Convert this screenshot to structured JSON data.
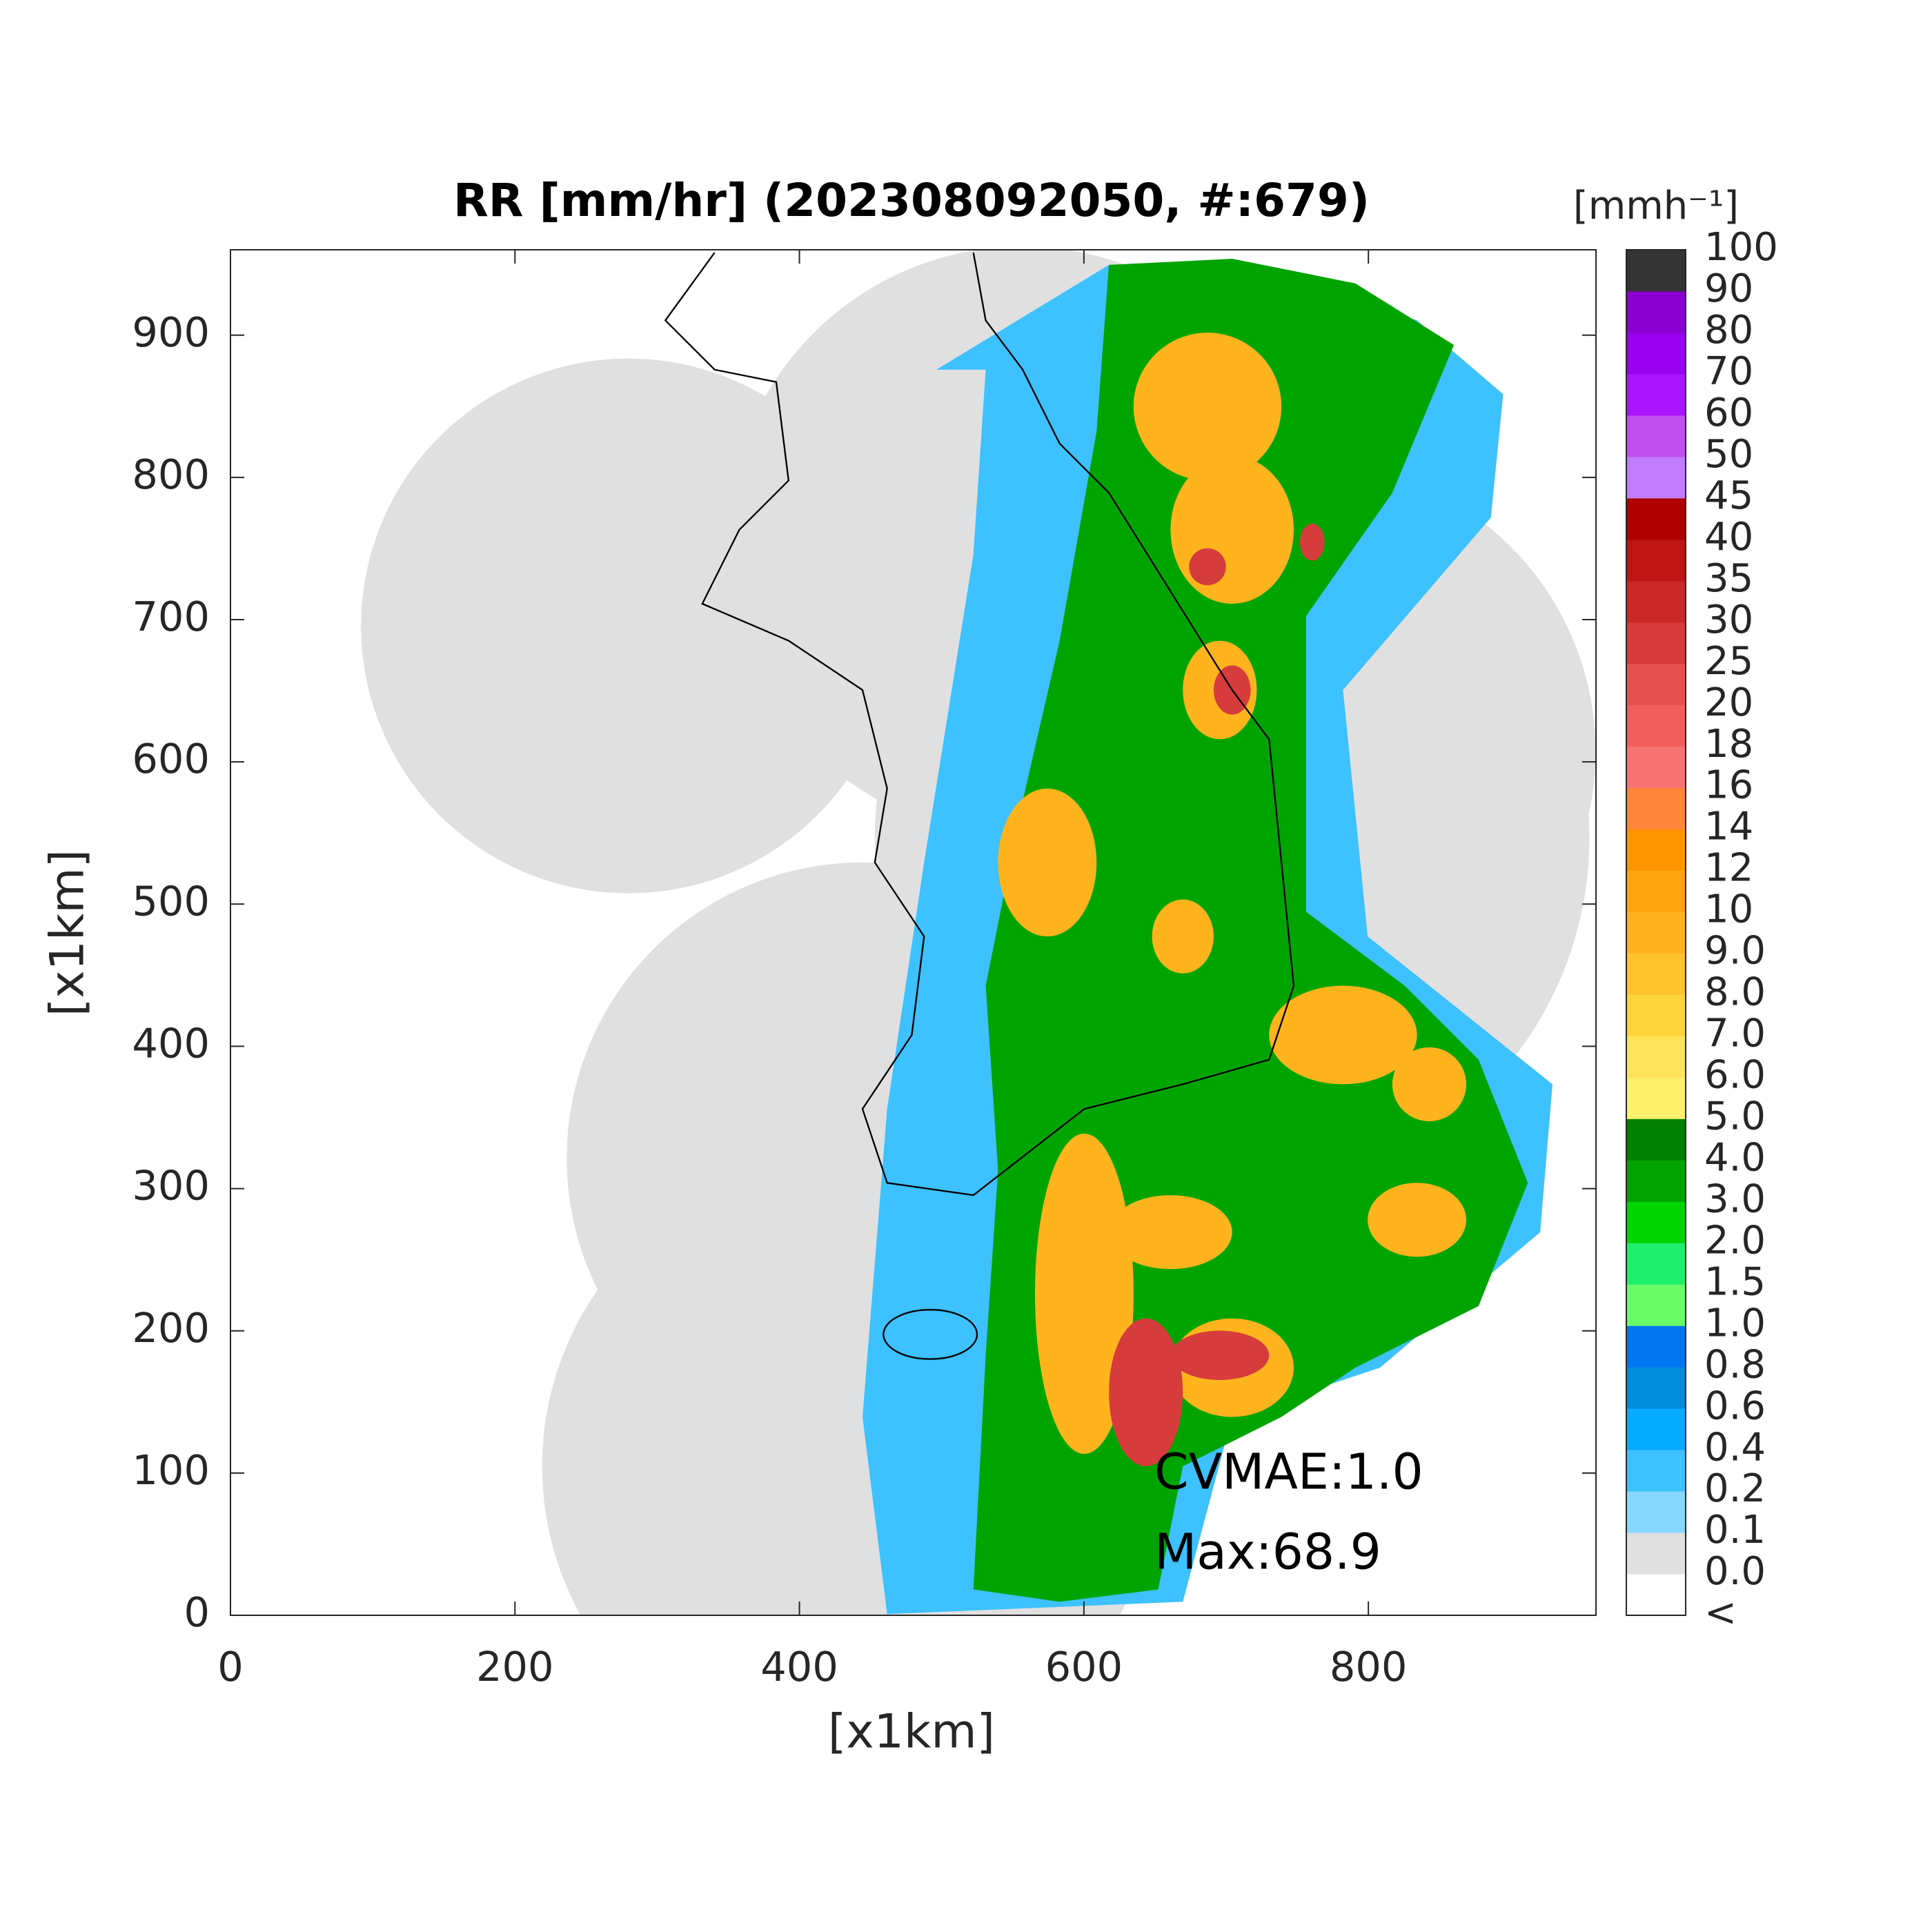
{
  "chart_data": {
    "type": "heatmap",
    "title": "RR [mm/hr] (202308092050, #:679)",
    "x_label": "[x1km]",
    "y_label": "[x1km]",
    "xlim": [
      0,
      960
    ],
    "ylim": [
      0,
      960
    ],
    "xticks": [
      0,
      200,
      400,
      600,
      800
    ],
    "yticks": [
      0,
      100,
      200,
      300,
      400,
      500,
      600,
      700,
      800,
      900
    ],
    "annotations": [
      "CVMAE:1.0",
      "Max:68.9"
    ],
    "colorbar": {
      "title": "[mmh⁻¹]",
      "labels": [
        "<",
        "0.0",
        "0.1",
        "0.2",
        "0.4",
        "0.6",
        "0.8",
        "1.0",
        "1.5",
        "2.0",
        "3.0",
        "4.0",
        "5.0",
        "6.0",
        "7.0",
        "8.0",
        "9.0",
        "10",
        "12",
        "14",
        "16",
        "18",
        "20",
        "25",
        "30",
        "35",
        "40",
        "45",
        "50",
        "60",
        "70",
        "80",
        "90",
        "100"
      ],
      "colors": [
        "#ffffff",
        "#e0e0e0",
        "#87d9ff",
        "#3ec1ff",
        "#07abff",
        "#008dde",
        "#0077f0",
        "#69fc69",
        "#1ef06e",
        "#00d500",
        "#00a400",
        "#007f00",
        "#fff06b",
        "#ffe45a",
        "#ffd43b",
        "#ffc42b",
        "#ffb41e",
        "#ffa410",
        "#ff9400",
        "#ff863a",
        "#f87474",
        "#f25d5d",
        "#e65050",
        "#d63c3c",
        "#ca2828",
        "#be1414",
        "#b00000",
        "#c27cff",
        "#c14ef0",
        "#aa14ff",
        "#9900ee",
        "#8a00d0",
        "#333333"
      ]
    }
  }
}
